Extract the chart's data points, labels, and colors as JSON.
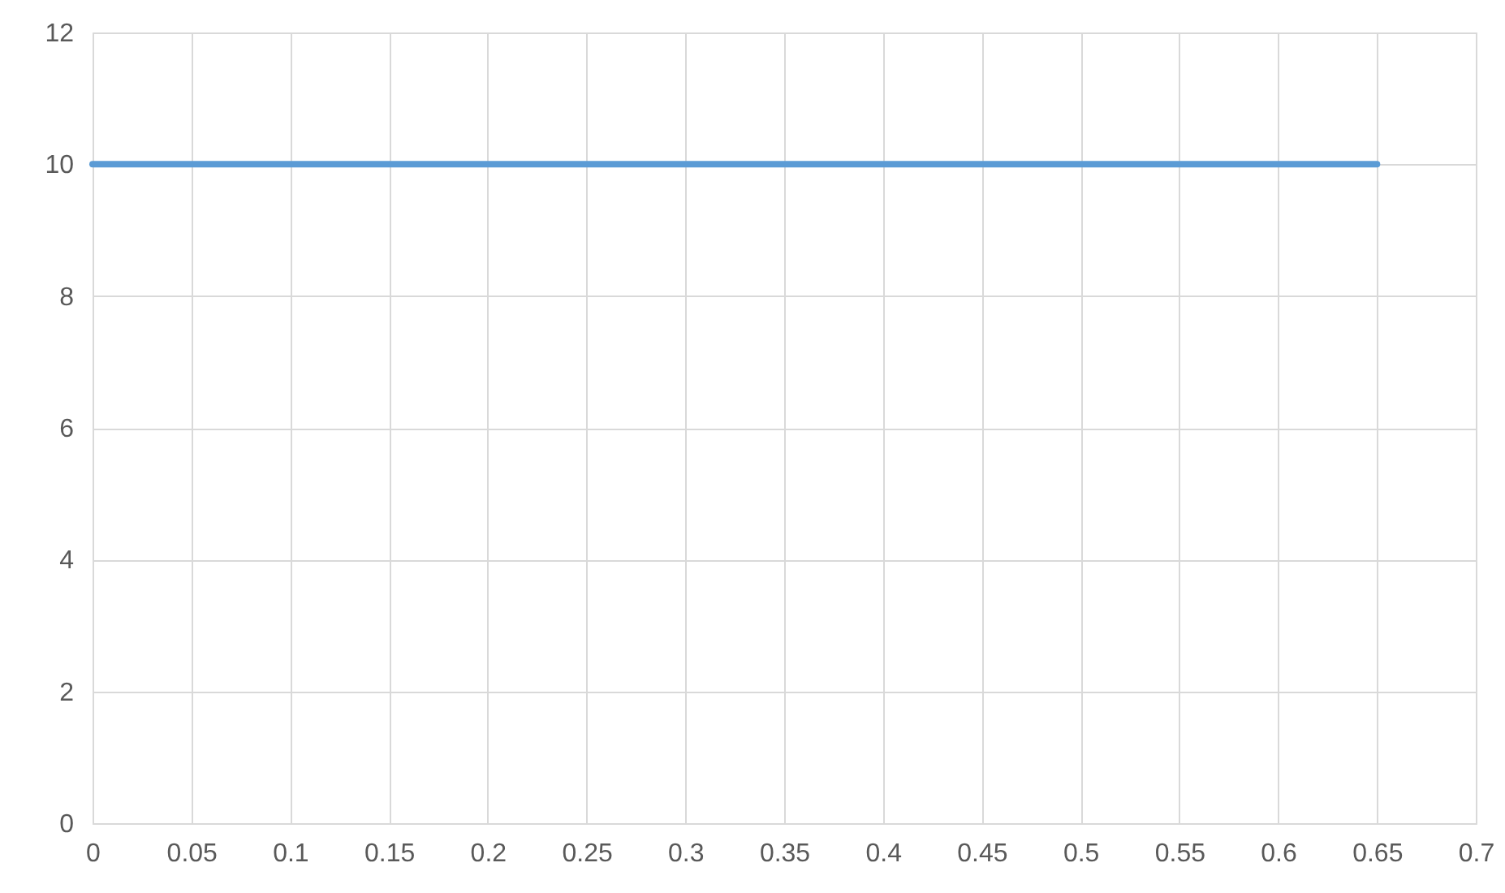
{
  "chart_data": {
    "type": "line",
    "x": [
      0,
      0.65
    ],
    "series": [
      {
        "color": "#5b9bd5",
        "values": [
          10,
          10
        ]
      }
    ],
    "xlim": [
      0,
      0.7
    ],
    "xticks": [
      0,
      0.05,
      0.1,
      0.15,
      0.2,
      0.25,
      0.3,
      0.35,
      0.4,
      0.45,
      0.5,
      0.55,
      0.6,
      0.65,
      0.7
    ],
    "ylim": [
      0,
      12
    ],
    "yticks": [
      0,
      2,
      4,
      6,
      8,
      10,
      12
    ],
    "grid": true,
    "marker": "none",
    "line_style": "solid"
  }
}
